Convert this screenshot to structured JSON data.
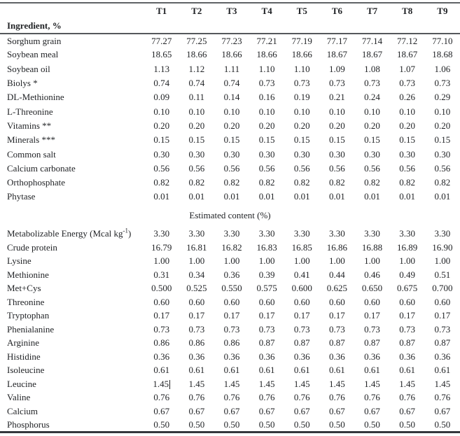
{
  "table": {
    "columns": [
      "T1",
      "T2",
      "T3",
      "T4",
      "T5",
      "T6",
      "T7",
      "T8",
      "T9"
    ],
    "ingredient_section": {
      "header": "Ingredient, %",
      "rows": [
        {
          "label": "Sorghum grain",
          "values": [
            "77.27",
            "77.25",
            "77.23",
            "77.21",
            "77.19",
            "77.17",
            "77.14",
            "77.12",
            "77.10"
          ]
        },
        {
          "label": "Soybean meal",
          "values": [
            "18.65",
            "18.66",
            "18.66",
            "18.66",
            "18.66",
            "18.67",
            "18.67",
            "18.67",
            "18.68"
          ]
        },
        {
          "label": "Soybean oil",
          "values": [
            "1.13",
            "1.12",
            "1.11",
            "1.10",
            "1.10",
            "1.09",
            "1.08",
            "1.07",
            "1.06"
          ]
        },
        {
          "label": "Biolys *",
          "values": [
            "0.74",
            "0.74",
            "0.74",
            "0.73",
            "0.73",
            "0.73",
            "0.73",
            "0.73",
            "0.73"
          ]
        },
        {
          "label": "DL-Methionine",
          "values": [
            "0.09",
            "0.11",
            "0.14",
            "0.16",
            "0.19",
            "0.21",
            "0.24",
            "0.26",
            "0.29"
          ]
        },
        {
          "label": "L-Threonine",
          "values": [
            "0.10",
            "0.10",
            "0.10",
            "0.10",
            "0.10",
            "0.10",
            "0.10",
            "0.10",
            "0.10"
          ]
        },
        {
          "label": "Vitamins **",
          "values": [
            "0.20",
            "0.20",
            "0.20",
            "0.20",
            "0.20",
            "0.20",
            "0.20",
            "0.20",
            "0.20"
          ]
        },
        {
          "label": "Minerals ***",
          "values": [
            "0.15",
            "0.15",
            "0.15",
            "0.15",
            "0.15",
            "0.15",
            "0.15",
            "0.15",
            "0.15"
          ]
        },
        {
          "label": "Common salt",
          "values": [
            "0.30",
            "0.30",
            "0.30",
            "0.30",
            "0.30",
            "0.30",
            "0.30",
            "0.30",
            "0.30"
          ]
        },
        {
          "label": "Calcium carbonate",
          "values": [
            "0.56",
            "0.56",
            "0.56",
            "0.56",
            "0.56",
            "0.56",
            "0.56",
            "0.56",
            "0.56"
          ]
        },
        {
          "label": "Orthophosphate",
          "values": [
            "0.82",
            "0.82",
            "0.82",
            "0.82",
            "0.82",
            "0.82",
            "0.82",
            "0.82",
            "0.82"
          ]
        },
        {
          "label": "Phytase",
          "values": [
            "0.01",
            "0.01",
            "0.01",
            "0.01",
            "0.01",
            "0.01",
            "0.01",
            "0.01",
            "0.01"
          ]
        }
      ]
    },
    "estimated_section": {
      "header": "Estimated content (%)",
      "rows": [
        {
          "label": {
            "pre": "Metabolizable Energy (Mcal kg",
            "sup": "-1",
            "post": ")"
          },
          "values": [
            "3.30",
            "3.30",
            "3.30",
            "3.30",
            "3.30",
            "3.30",
            "3.30",
            "3.30",
            "3.30"
          ]
        },
        {
          "label": "Crude protein",
          "values": [
            "16.79",
            "16.81",
            "16.82",
            "16.83",
            "16.85",
            "16.86",
            "16.88",
            "16.89",
            "16.90"
          ]
        },
        {
          "label": "Lysine",
          "values": [
            "1.00",
            "1.00",
            "1.00",
            "1.00",
            "1.00",
            "1.00",
            "1.00",
            "1.00",
            "1.00"
          ]
        },
        {
          "label": "Methionine",
          "values": [
            "0.31",
            "0.34",
            "0.36",
            "0.39",
            "0.41",
            "0.44",
            "0.46",
            "0.49",
            "0.51"
          ]
        },
        {
          "label": "Met+Cys",
          "values": [
            "0.500",
            "0.525",
            "0.550",
            "0.575",
            "0.600",
            "0.625",
            "0.650",
            "0.675",
            "0.700"
          ]
        },
        {
          "label": "Threonine",
          "values": [
            "0.60",
            "0.60",
            "0.60",
            "0.60",
            "0.60",
            "0.60",
            "0.60",
            "0.60",
            "0.60"
          ]
        },
        {
          "label": "Tryptophan",
          "values": [
            "0.17",
            "0.17",
            "0.17",
            "0.17",
            "0.17",
            "0.17",
            "0.17",
            "0.17",
            "0.17"
          ]
        },
        {
          "label": "Phenialanine",
          "values": [
            "0.73",
            "0.73",
            "0.73",
            "0.73",
            "0.73",
            "0.73",
            "0.73",
            "0.73",
            "0.73"
          ]
        },
        {
          "label": "Arginine",
          "values": [
            "0.86",
            "0.86",
            "0.86",
            "0.87",
            "0.87",
            "0.87",
            "0.87",
            "0.87",
            "0.87"
          ]
        },
        {
          "label": "Histidine",
          "values": [
            "0.36",
            "0.36",
            "0.36",
            "0.36",
            "0.36",
            "0.36",
            "0.36",
            "0.36",
            "0.36"
          ]
        },
        {
          "label": "Isoleucine",
          "values": [
            "0.61",
            "0.61",
            "0.61",
            "0.61",
            "0.61",
            "0.61",
            "0.61",
            "0.61",
            "0.61"
          ]
        },
        {
          "label": "Leucine",
          "values": [
            "1.45",
            "1.45",
            "1.45",
            "1.45",
            "1.45",
            "1.45",
            "1.45",
            "1.45",
            "1.45"
          ],
          "text_cursor_after_col": 0
        },
        {
          "label": "Valine",
          "values": [
            "0.76",
            "0.76",
            "0.76",
            "0.76",
            "0.76",
            "0.76",
            "0.76",
            "0.76",
            "0.76"
          ]
        },
        {
          "label": "Calcium",
          "values": [
            "0.67",
            "0.67",
            "0.67",
            "0.67",
            "0.67",
            "0.67",
            "0.67",
            "0.67",
            "0.67"
          ]
        },
        {
          "label": "Phosphorus",
          "values": [
            "0.50",
            "0.50",
            "0.50",
            "0.50",
            "0.50",
            "0.50",
            "0.50",
            "0.50",
            "0.50"
          ]
        }
      ]
    },
    "colors": {
      "border_top": "#606366",
      "border_mid": "#55585c",
      "border_bottom": "#34383d",
      "text": "#1f2124"
    }
  }
}
